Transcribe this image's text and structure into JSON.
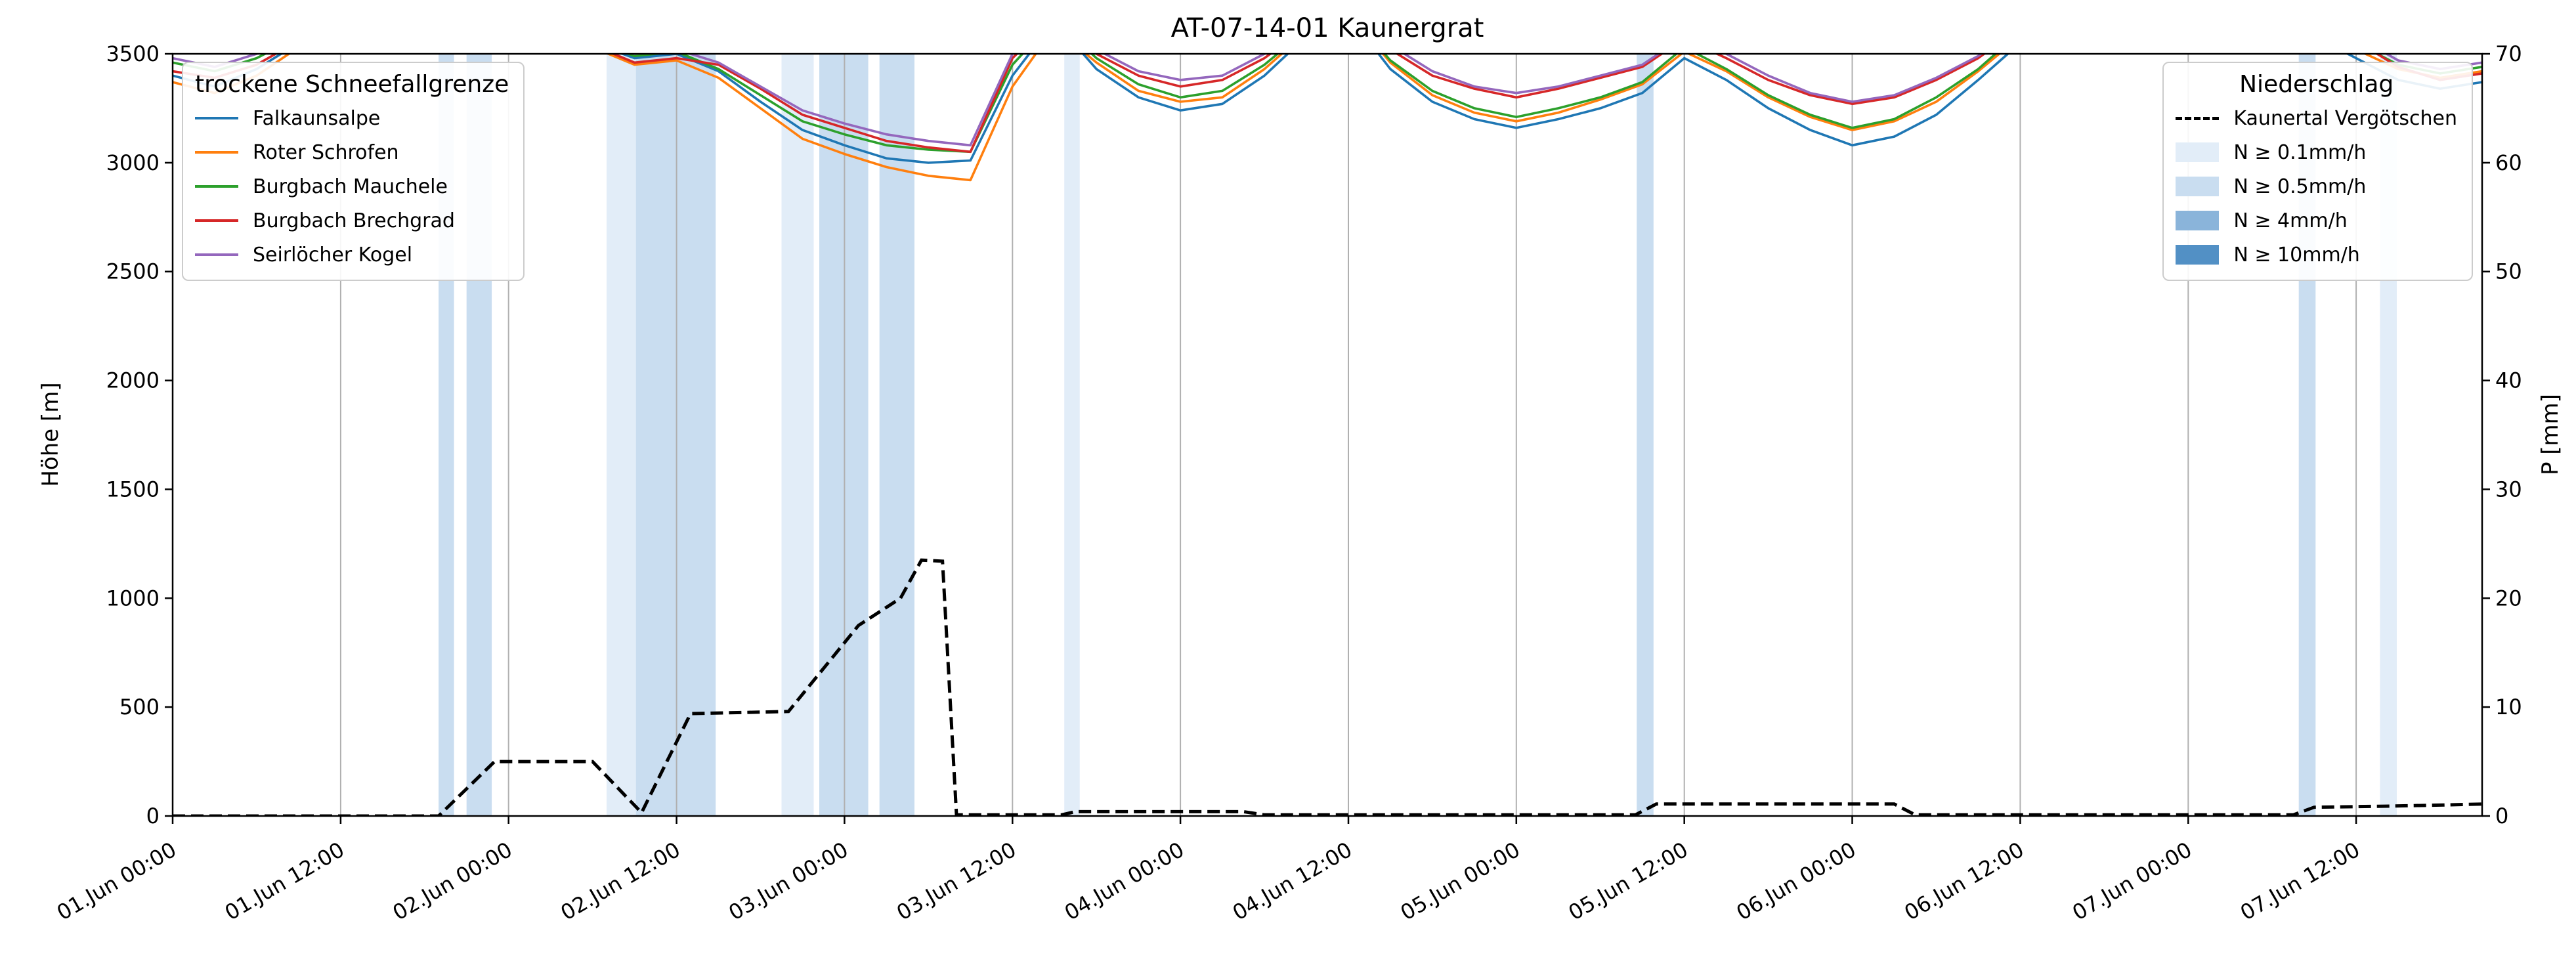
{
  "title": "AT-07-14-01 Kaunergrat",
  "axes": {
    "x": {
      "tick_labels": [
        "01.Jun 00:00",
        "01.Jun 12:00",
        "02.Jun 00:00",
        "02.Jun 12:00",
        "03.Jun 00:00",
        "03.Jun 12:00",
        "04.Jun 00:00",
        "04.Jun 12:00",
        "05.Jun 00:00",
        "05.Jun 12:00",
        "06.Jun 00:00",
        "06.Jun 12:00",
        "07.Jun 00:00",
        "07.Jun 12:00"
      ],
      "tick_hours": [
        0,
        12,
        24,
        36,
        48,
        60,
        72,
        84,
        96,
        108,
        120,
        132,
        144,
        156
      ],
      "range_hours": [
        0,
        165
      ]
    },
    "y_left": {
      "label": "Höhe [m]",
      "ticks": [
        0,
        500,
        1000,
        1500,
        2000,
        2500,
        3000,
        3500
      ],
      "range": [
        0,
        3500
      ]
    },
    "y_right": {
      "label": "P [mm]",
      "ticks": [
        0,
        10,
        20,
        30,
        40,
        50,
        60,
        70
      ],
      "range": [
        0,
        70
      ]
    }
  },
  "legend_snowline": {
    "title": "trockene Schneefallgrenze",
    "items": [
      {
        "label": "Falkaunsalpe",
        "color": "#1f77b4"
      },
      {
        "label": "Roter Schrofen",
        "color": "#ff7f0e"
      },
      {
        "label": "Burgbach Mauchele",
        "color": "#2ca02c"
      },
      {
        "label": "Burgbach Brechgrad",
        "color": "#d62728"
      },
      {
        "label": "Seirlöcher Kogel",
        "color": "#9467bd"
      }
    ]
  },
  "legend_precip": {
    "title": "Niederschlag",
    "line_item": {
      "label": "Kaunertal Vergötschen",
      "color": "#000000",
      "style": "dashed"
    },
    "patch_items": [
      {
        "label": "N ≥ 0.1mm/h",
        "level": "0.1",
        "color": "#e2edf8"
      },
      {
        "label": "N ≥ 0.5mm/h",
        "level": "0.5",
        "color": "#c9ddf0"
      },
      {
        "label": "N ≥ 4mm/h",
        "level": "4",
        "color": "#8ab4da"
      },
      {
        "label": "N ≥ 10mm/h",
        "level": "10",
        "color": "#5290c5"
      }
    ]
  },
  "chart_data": {
    "type": "line",
    "x_unit": "hours since 01.Jun 00:00",
    "grid": "vertical",
    "y_left_clip_max": 3500,
    "x_hours": [
      0,
      3,
      6,
      9,
      12,
      15,
      18,
      21,
      24,
      27,
      30,
      33,
      36,
      39,
      42,
      45,
      48,
      51,
      54,
      57,
      60,
      63,
      66,
      69,
      72,
      75,
      78,
      81,
      84,
      87,
      90,
      93,
      96,
      99,
      102,
      105,
      108,
      111,
      114,
      117,
      120,
      123,
      126,
      129,
      132,
      135,
      138,
      141,
      144,
      147,
      150,
      153,
      156,
      159,
      162,
      165
    ],
    "series": [
      {
        "name": "Falkaunsalpe",
        "color": "#1f77b4",
        "axis": "left",
        "unit": "m",
        "values": [
          3400,
          3350,
          3430,
          3550,
          3650,
          3700,
          3700,
          3650,
          3600,
          3650,
          3550,
          3480,
          3500,
          3420,
          3280,
          3150,
          3080,
          3020,
          3000,
          3010,
          3400,
          3650,
          3430,
          3300,
          3240,
          3270,
          3400,
          3580,
          3680,
          3430,
          3280,
          3200,
          3160,
          3200,
          3250,
          3320,
          3480,
          3380,
          3250,
          3150,
          3080,
          3120,
          3220,
          3380,
          3550,
          3650,
          3700,
          3700,
          3700,
          3700,
          3650,
          3580,
          3480,
          3380,
          3340,
          3370
        ]
      },
      {
        "name": "Roter Schrofen",
        "color": "#ff7f0e",
        "axis": "left",
        "unit": "m",
        "values": [
          3370,
          3320,
          3400,
          3530,
          3630,
          3690,
          3700,
          3630,
          3580,
          3630,
          3530,
          3450,
          3470,
          3390,
          3250,
          3110,
          3040,
          2980,
          2940,
          2920,
          3350,
          3620,
          3460,
          3330,
          3280,
          3300,
          3430,
          3600,
          3690,
          3460,
          3310,
          3230,
          3190,
          3230,
          3290,
          3360,
          3510,
          3420,
          3300,
          3210,
          3150,
          3190,
          3280,
          3420,
          3580,
          3670,
          3700,
          3700,
          3700,
          3700,
          3670,
          3610,
          3520,
          3430,
          3390,
          3420
        ]
      },
      {
        "name": "Burgbach Mauchele",
        "color": "#2ca02c",
        "axis": "left",
        "unit": "m",
        "values": [
          3460,
          3420,
          3480,
          3580,
          3660,
          3700,
          3700,
          3660,
          3620,
          3660,
          3560,
          3490,
          3510,
          3430,
          3310,
          3190,
          3130,
          3080,
          3060,
          3050,
          3450,
          3660,
          3480,
          3360,
          3300,
          3330,
          3450,
          3610,
          3690,
          3470,
          3330,
          3250,
          3210,
          3250,
          3300,
          3370,
          3530,
          3430,
          3310,
          3220,
          3160,
          3200,
          3300,
          3430,
          3600,
          3680,
          3700,
          3700,
          3700,
          3700,
          3680,
          3640,
          3550,
          3450,
          3410,
          3440
        ]
      },
      {
        "name": "Burgbach Brechgrad",
        "color": "#d62728",
        "axis": "left",
        "unit": "m",
        "values": [
          3420,
          3390,
          3450,
          3560,
          3640,
          3690,
          3700,
          3640,
          3600,
          3640,
          3540,
          3460,
          3480,
          3450,
          3340,
          3220,
          3160,
          3100,
          3070,
          3050,
          3480,
          3670,
          3500,
          3400,
          3350,
          3380,
          3480,
          3620,
          3690,
          3520,
          3400,
          3340,
          3300,
          3340,
          3390,
          3440,
          3570,
          3480,
          3380,
          3310,
          3270,
          3300,
          3380,
          3480,
          3620,
          3690,
          3700,
          3700,
          3700,
          3700,
          3690,
          3650,
          3560,
          3440,
          3380,
          3410
        ]
      },
      {
        "name": "Seirlöcher Kogel",
        "color": "#9467bd",
        "axis": "left",
        "unit": "m",
        "values": [
          3480,
          3440,
          3500,
          3600,
          3670,
          3700,
          3700,
          3670,
          3630,
          3670,
          3570,
          3500,
          3520,
          3460,
          3350,
          3240,
          3180,
          3130,
          3100,
          3080,
          3500,
          3680,
          3520,
          3420,
          3380,
          3400,
          3500,
          3640,
          3700,
          3540,
          3420,
          3350,
          3320,
          3350,
          3400,
          3450,
          3580,
          3500,
          3400,
          3320,
          3280,
          3310,
          3390,
          3490,
          3630,
          3700,
          3700,
          3700,
          3700,
          3700,
          3700,
          3680,
          3580,
          3470,
          3430,
          3460
        ]
      }
    ],
    "precip_line": {
      "name": "Kaunertal Vergötschen",
      "color": "#000000",
      "style": "dashed",
      "axis": "right",
      "unit": "mm",
      "points": [
        [
          0,
          0
        ],
        [
          19,
          0
        ],
        [
          23,
          5
        ],
        [
          30,
          5
        ],
        [
          33.5,
          0.3
        ],
        [
          37,
          9.4
        ],
        [
          44,
          9.6
        ],
        [
          49,
          17.5
        ],
        [
          52,
          20
        ],
        [
          53.5,
          23.5
        ],
        [
          55,
          23.4
        ],
        [
          56,
          0.1
        ],
        [
          63.5,
          0.1
        ],
        [
          64.5,
          0.4
        ],
        [
          76.5,
          0.4
        ],
        [
          78,
          0.1
        ],
        [
          104.5,
          0.1
        ],
        [
          106,
          1.1
        ],
        [
          123,
          1.1
        ],
        [
          124.5,
          0.1
        ],
        [
          151.5,
          0.1
        ],
        [
          153,
          0.8
        ],
        [
          158,
          0.9
        ],
        [
          162,
          1.0
        ],
        [
          165,
          1.1
        ]
      ]
    },
    "precip_bands": [
      {
        "start_hour": 19.0,
        "end_hour": 20.1,
        "level": "0.5"
      },
      {
        "start_hour": 21.0,
        "end_hour": 22.8,
        "level": "0.5"
      },
      {
        "start_hour": 31.0,
        "end_hour": 33.1,
        "level": "0.1"
      },
      {
        "start_hour": 33.1,
        "end_hour": 38.8,
        "level": "0.5"
      },
      {
        "start_hour": 43.5,
        "end_hour": 45.8,
        "level": "0.1"
      },
      {
        "start_hour": 46.2,
        "end_hour": 49.7,
        "level": "0.5"
      },
      {
        "start_hour": 50.5,
        "end_hour": 53.0,
        "level": "0.5"
      },
      {
        "start_hour": 63.7,
        "end_hour": 64.8,
        "level": "0.1"
      },
      {
        "start_hour": 104.6,
        "end_hour": 105.8,
        "level": "0.5"
      },
      {
        "start_hour": 151.9,
        "end_hour": 153.1,
        "level": "0.5"
      },
      {
        "start_hour": 157.7,
        "end_hour": 158.9,
        "level": "0.1"
      }
    ],
    "level_colors": {
      "0.1": "#e2edf8",
      "0.5": "#c9ddf0",
      "4": "#8ab4da",
      "10": "#5290c5"
    }
  }
}
